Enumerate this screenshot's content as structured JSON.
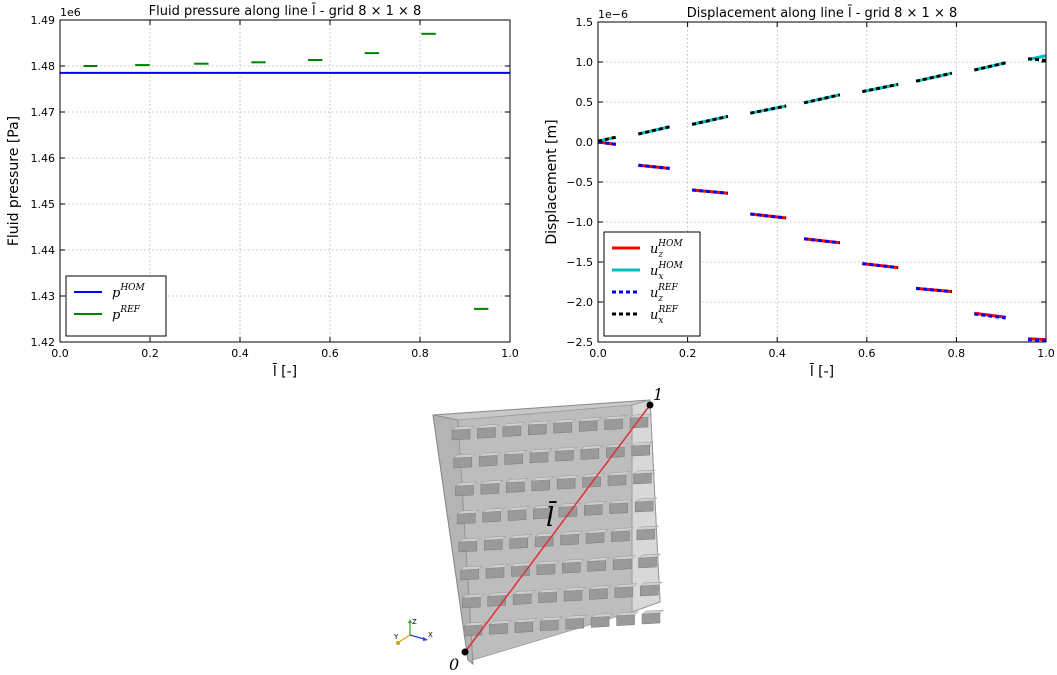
{
  "chart_data": [
    {
      "type": "line",
      "title": "Fluid pressure along line l̄ - grid 8 × 1 × 8",
      "offset_label": "1e6",
      "xlabel": "l̄ [-]",
      "ylabel": "Fluid pressure [Pa]",
      "xlim": [
        0.0,
        1.0
      ],
      "ylim": [
        1.42,
        1.49
      ],
      "xticks": [
        "0.0",
        "0.2",
        "0.4",
        "0.6",
        "0.8",
        "1.0"
      ],
      "yticks": [
        "1.42",
        "1.43",
        "1.44",
        "1.45",
        "1.46",
        "1.47",
        "1.48",
        "1.49"
      ],
      "grid": true,
      "legend_position": "lower-left",
      "series": [
        {
          "name": "p^HOM",
          "color": "#0000ff",
          "style": "solid",
          "segments": [
            [
              [
                0.0,
                1.4785
              ],
              [
                1.0,
                1.4785
              ]
            ]
          ]
        },
        {
          "name": "p^REF",
          "color": "#008000",
          "style": "solid",
          "segments": [
            [
              [
                0.052,
                1.48
              ],
              [
                0.083,
                1.48
              ]
            ],
            [
              [
                0.167,
                1.4802
              ],
              [
                0.199,
                1.4802
              ]
            ],
            [
              [
                0.298,
                1.4805
              ],
              [
                0.33,
                1.4805
              ]
            ],
            [
              [
                0.425,
                1.4808
              ],
              [
                0.457,
                1.4808
              ]
            ],
            [
              [
                0.551,
                1.4813
              ],
              [
                0.583,
                1.4813
              ]
            ],
            [
              [
                0.677,
                1.4828
              ],
              [
                0.709,
                1.4828
              ]
            ],
            [
              [
                0.803,
                1.487
              ],
              [
                0.835,
                1.487
              ]
            ],
            [
              [
                0.92,
                1.4272
              ],
              [
                0.952,
                1.4272
              ]
            ]
          ]
        }
      ]
    },
    {
      "type": "line",
      "title": "Displacement along line l̄ - grid 8 × 1 × 8",
      "offset_label": "1e−6",
      "xlabel": "l̄ [-]",
      "ylabel": "Displacement [m]",
      "xlim": [
        0.0,
        1.0
      ],
      "ylim": [
        -2.5,
        1.5
      ],
      "xticks": [
        "0.0",
        "0.2",
        "0.4",
        "0.6",
        "0.8",
        "1.0"
      ],
      "yticks": [
        "1.5",
        "1.0",
        "0.5",
        "0.0",
        "−0.5",
        "−1.0",
        "−1.5",
        "−2.0",
        "−2.5"
      ],
      "grid": true,
      "legend_position": "lower-left",
      "series": [
        {
          "name": "u_z^HOM",
          "color": "#ff0000",
          "style": "solid",
          "segments": [
            [
              [
                0.0,
                0.0
              ],
              [
                0.04,
                -0.03
              ]
            ],
            [
              [
                0.09,
                -0.29
              ],
              [
                0.16,
                -0.33
              ]
            ],
            [
              [
                0.21,
                -0.6
              ],
              [
                0.29,
                -0.64
              ]
            ],
            [
              [
                0.34,
                -0.9
              ],
              [
                0.42,
                -0.95
              ]
            ],
            [
              [
                0.46,
                -1.21
              ],
              [
                0.54,
                -1.26
              ]
            ],
            [
              [
                0.59,
                -1.52
              ],
              [
                0.67,
                -1.57
              ]
            ],
            [
              [
                0.71,
                -1.83
              ],
              [
                0.79,
                -1.87
              ]
            ],
            [
              [
                0.84,
                -2.14
              ],
              [
                0.91,
                -2.19
              ]
            ],
            [
              [
                0.96,
                -2.46
              ],
              [
                1.0,
                -2.47
              ]
            ]
          ]
        },
        {
          "name": "u_x^HOM",
          "color": "#00bfbf",
          "style": "solid",
          "segments": [
            [
              [
                0.0,
                0.01
              ],
              [
                0.04,
                0.06
              ]
            ],
            [
              [
                0.09,
                0.1
              ],
              [
                0.16,
                0.19
              ]
            ],
            [
              [
                0.21,
                0.22
              ],
              [
                0.29,
                0.32
              ]
            ],
            [
              [
                0.34,
                0.36
              ],
              [
                0.42,
                0.45
              ]
            ],
            [
              [
                0.46,
                0.49
              ],
              [
                0.54,
                0.59
              ]
            ],
            [
              [
                0.59,
                0.63
              ],
              [
                0.67,
                0.72
              ]
            ],
            [
              [
                0.71,
                0.76
              ],
              [
                0.79,
                0.86
              ]
            ],
            [
              [
                0.84,
                0.9
              ],
              [
                0.91,
                0.99
              ]
            ],
            [
              [
                0.96,
                1.03
              ],
              [
                1.0,
                1.08
              ]
            ]
          ]
        },
        {
          "name": "u_z^REF",
          "color": "#0000ff",
          "style": "dashed",
          "segments": [
            [
              [
                0.0,
                0.0
              ],
              [
                0.04,
                -0.03
              ]
            ],
            [
              [
                0.09,
                -0.29
              ],
              [
                0.16,
                -0.33
              ]
            ],
            [
              [
                0.21,
                -0.6
              ],
              [
                0.29,
                -0.64
              ]
            ],
            [
              [
                0.34,
                -0.9
              ],
              [
                0.42,
                -0.95
              ]
            ],
            [
              [
                0.46,
                -1.21
              ],
              [
                0.54,
                -1.26
              ]
            ],
            [
              [
                0.59,
                -1.52
              ],
              [
                0.67,
                -1.57
              ]
            ],
            [
              [
                0.71,
                -1.83
              ],
              [
                0.79,
                -1.87
              ]
            ],
            [
              [
                0.84,
                -2.15
              ],
              [
                0.91,
                -2.2
              ]
            ],
            [
              [
                0.96,
                -2.47
              ],
              [
                1.0,
                -2.48
              ]
            ]
          ]
        },
        {
          "name": "u_x^REF",
          "color": "#000000",
          "style": "dashed",
          "segments": [
            [
              [
                0.0,
                0.01
              ],
              [
                0.04,
                0.06
              ]
            ],
            [
              [
                0.09,
                0.1
              ],
              [
                0.16,
                0.19
              ]
            ],
            [
              [
                0.21,
                0.22
              ],
              [
                0.29,
                0.32
              ]
            ],
            [
              [
                0.34,
                0.36
              ],
              [
                0.42,
                0.45
              ]
            ],
            [
              [
                0.46,
                0.49
              ],
              [
                0.54,
                0.59
              ]
            ],
            [
              [
                0.59,
                0.63
              ],
              [
                0.67,
                0.72
              ]
            ],
            [
              [
                0.71,
                0.76
              ],
              [
                0.79,
                0.86
              ]
            ],
            [
              [
                0.84,
                0.9
              ],
              [
                0.91,
                0.99
              ]
            ],
            [
              [
                0.96,
                1.04
              ],
              [
                1.0,
                1.02
              ]
            ]
          ]
        }
      ]
    }
  ],
  "diagram": {
    "line_label": "l̄",
    "start_label": "0",
    "end_label": "1",
    "axis_z": "Z",
    "axis_y": "Y",
    "axis_x": "X",
    "line_color": "#e03030",
    "inclusion_rows": 8,
    "inclusion_cols": 8
  }
}
